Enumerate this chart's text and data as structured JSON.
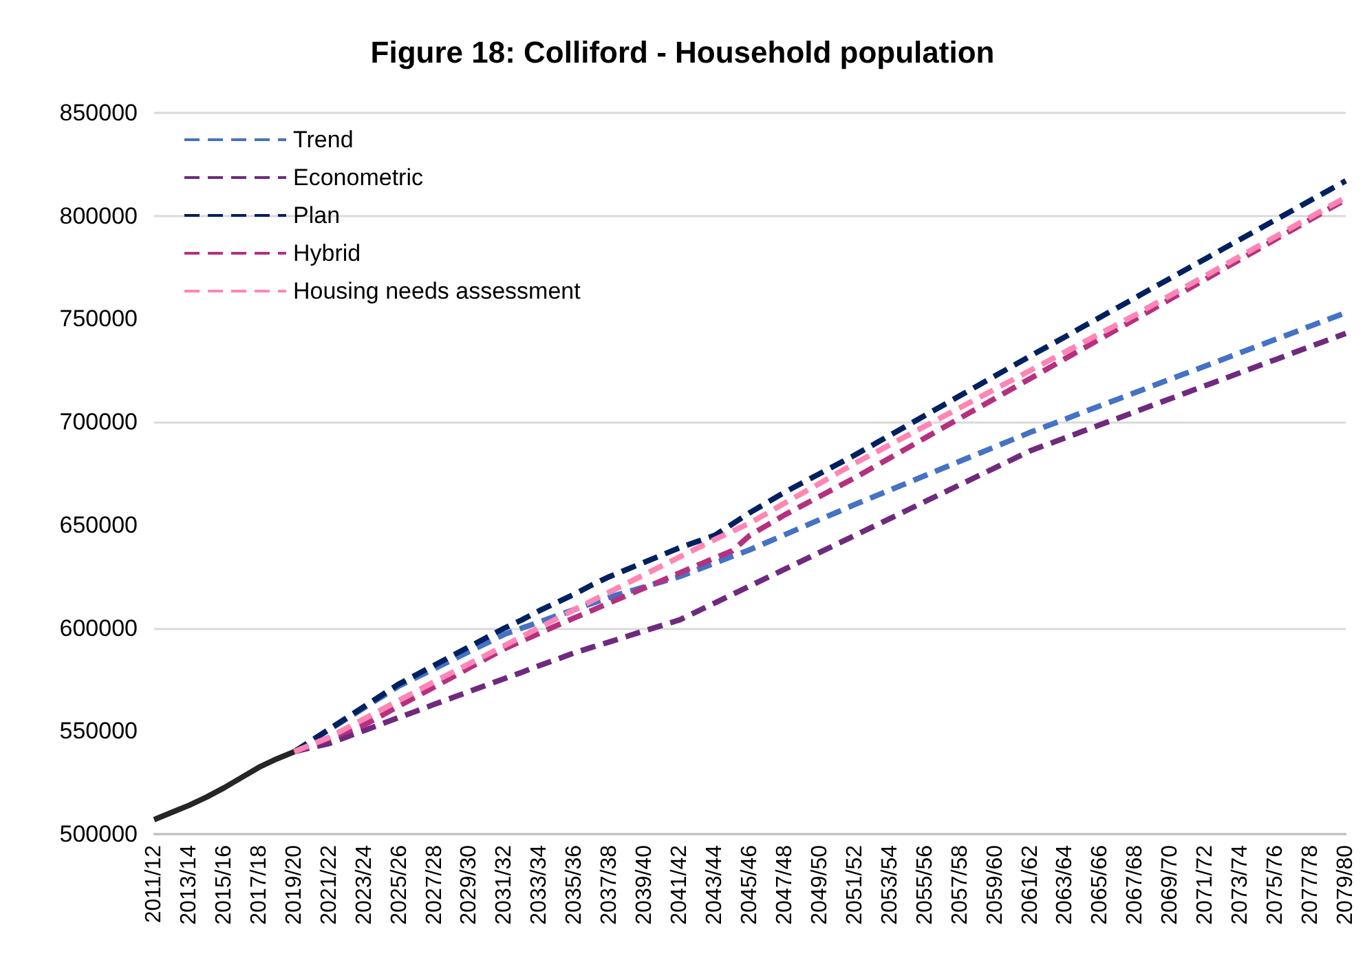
{
  "chart_data": {
    "type": "line",
    "title": "Figure 18: Colliford - Household population",
    "categories": [
      "2011/12",
      null,
      "2013/14",
      null,
      "2015/16",
      null,
      "2017/18",
      null,
      "2019/20",
      null,
      "2021/22",
      null,
      "2023/24",
      null,
      "2025/26",
      null,
      "2027/28",
      null,
      "2029/30",
      null,
      "2031/32",
      null,
      "2033/34",
      null,
      "2035/36",
      null,
      "2037/38",
      null,
      "2039/40",
      null,
      "2041/42",
      null,
      "2043/44",
      null,
      "2045/46",
      null,
      "2047/48",
      null,
      "2049/50",
      null,
      "2051/52",
      null,
      "2053/54",
      null,
      "2055/56",
      null,
      "2057/58",
      null,
      "2059/60",
      null,
      "2061/62",
      null,
      "2063/64",
      null,
      "2065/66",
      null,
      "2067/68",
      null,
      "2069/70",
      null,
      "2071/72",
      null,
      "2073/74",
      null,
      "2075/76",
      null,
      "2077/78",
      null,
      "2079/80"
    ],
    "series": [
      {
        "color": "#262626",
        "line_style": "solid",
        "values": [
          507000,
          510500,
          514000,
          518000,
          522500,
          527500,
          532500,
          536500,
          540000,
          null,
          null,
          null,
          null,
          null,
          null,
          null,
          null,
          null,
          null,
          null,
          null,
          null,
          null,
          null,
          null,
          null,
          null,
          null,
          null,
          null,
          null,
          null,
          null,
          null,
          null,
          null,
          null,
          null,
          null,
          null,
          null,
          null,
          null,
          null,
          null,
          null,
          null,
          null,
          null,
          null,
          null,
          null,
          null,
          null,
          null,
          null,
          null,
          null,
          null,
          null,
          null,
          null,
          null,
          null,
          null,
          null,
          null,
          null,
          null
        ]
      },
      {
        "name": "Trend",
        "color": "#4472c4",
        "values": [
          null,
          null,
          null,
          null,
          null,
          null,
          null,
          null,
          540000,
          545300,
          550700,
          556000,
          561300,
          566700,
          572000,
          576200,
          580300,
          584500,
          588700,
          592800,
          597000,
          600000,
          603000,
          606000,
          609000,
          612000,
          615000,
          617500,
          620000,
          622500,
          625000,
          628300,
          631500,
          634800,
          638000,
          641700,
          645300,
          649000,
          652700,
          656300,
          660000,
          663500,
          667000,
          670500,
          674000,
          677500,
          681000,
          684500,
          688000,
          691500,
          695000,
          698200,
          701400,
          704700,
          707900,
          711100,
          714300,
          717600,
          720800,
          724000,
          727200,
          730400,
          733700,
          736900,
          740100,
          743300,
          746600,
          749800,
          753000
        ]
      },
      {
        "name": "Econometric",
        "color": "#6f2a7e",
        "values": [
          null,
          null,
          null,
          null,
          null,
          null,
          null,
          null,
          540000,
          542000,
          544000,
          547200,
          550300,
          553500,
          556700,
          559800,
          563000,
          566100,
          569300,
          572400,
          575500,
          578600,
          581800,
          584900,
          588000,
          590700,
          593300,
          596000,
          598700,
          601300,
          604000,
          608100,
          612200,
          616300,
          620400,
          624500,
          628600,
          632700,
          636800,
          640900,
          645000,
          649100,
          653200,
          657300,
          661400,
          665500,
          669600,
          673700,
          677800,
          681900,
          686000,
          689200,
          692300,
          695500,
          698700,
          701800,
          705000,
          708200,
          711300,
          714500,
          717700,
          720800,
          724000,
          727200,
          730300,
          733500,
          736700,
          739800,
          743000
        ]
      },
      {
        "name": "Plan",
        "color": "#002060",
        "values": [
          null,
          null,
          null,
          null,
          null,
          null,
          null,
          null,
          540000,
          545500,
          551000,
          556500,
          562000,
          567500,
          573000,
          577500,
          582000,
          586500,
          591000,
          595500,
          600000,
          604000,
          608500,
          612500,
          616500,
          621000,
          625000,
          628500,
          632000,
          635500,
          639000,
          642000,
          645000,
          650500,
          656000,
          661000,
          666000,
          670500,
          675000,
          679500,
          684000,
          688800,
          693600,
          698400,
          703200,
          708000,
          712800,
          717600,
          722400,
          727200,
          732000,
          736700,
          741400,
          746200,
          750900,
          755600,
          760300,
          765100,
          769800,
          774500,
          779200,
          784000,
          788700,
          793400,
          798100,
          802800,
          807600,
          812300,
          817000
        ]
      },
      {
        "name": "Hybrid",
        "color": "#b5307f",
        "values": [
          null,
          null,
          null,
          null,
          null,
          null,
          null,
          null,
          540000,
          543300,
          546500,
          549800,
          553000,
          557600,
          562300,
          566900,
          571500,
          576100,
          580800,
          585400,
          590000,
          593800,
          597500,
          601300,
          605000,
          608600,
          612300,
          615900,
          619500,
          623100,
          626800,
          630400,
          634000,
          637500,
          645000,
          650000,
          655000,
          659500,
          664000,
          668500,
          673000,
          677800,
          682600,
          687400,
          692300,
          697100,
          701900,
          706700,
          711500,
          716300,
          721100,
          725900,
          730800,
          735600,
          740400,
          745200,
          750000,
          754800,
          759700,
          764500,
          769300,
          774200,
          779000,
          783800,
          788700,
          793500,
          798300,
          803200,
          808000
        ]
      },
      {
        "name": "Housing needs assessment",
        "color": "#ff85b5",
        "values": [
          null,
          null,
          null,
          null,
          null,
          null,
          null,
          null,
          540000,
          543500,
          547000,
          551500,
          556000,
          560500,
          565000,
          569500,
          574000,
          578400,
          582800,
          587100,
          591500,
          595900,
          600300,
          604600,
          609000,
          613300,
          617500,
          621800,
          626000,
          630300,
          634500,
          638800,
          643000,
          647000,
          651000,
          655800,
          660700,
          665500,
          670300,
          675200,
          680000,
          684500,
          689000,
          693500,
          698000,
          702500,
          707000,
          711500,
          716000,
          720500,
          725000,
          729500,
          734000,
          738500,
          743000,
          747500,
          752000,
          756800,
          761500,
          766300,
          771000,
          775800,
          780500,
          785300,
          790000,
          794800,
          799500,
          804300,
          809000
        ]
      }
    ],
    "ylim": [
      500000,
      850000
    ],
    "yticks": [
      500000,
      550000,
      600000,
      650000,
      700000,
      750000,
      800000,
      850000
    ],
    "grid": "y",
    "legend": "top left",
    "marker": "none",
    "line_style": "dashed"
  }
}
